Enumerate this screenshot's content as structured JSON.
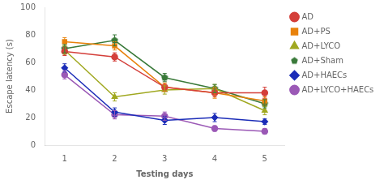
{
  "chart_data": {
    "type": "line",
    "xlabel": "Testing days",
    "ylabel": "Escape latency (s)",
    "x": [
      1,
      2,
      3,
      4,
      5
    ],
    "series": [
      {
        "name": "AD",
        "color": "#d43f3a",
        "marker": "circle",
        "values": [
          68,
          64,
          42,
          38,
          38
        ],
        "errors": [
          3,
          3,
          3,
          3,
          4
        ]
      },
      {
        "name": "AD+PS",
        "color": "#e8820c",
        "marker": "square",
        "values": [
          75,
          72,
          42,
          38,
          32
        ],
        "errors": [
          3,
          3,
          3,
          4,
          3
        ]
      },
      {
        "name": "AD+LYCO",
        "color": "#a0a820",
        "marker": "triangle",
        "values": [
          69,
          35,
          40,
          41,
          25
        ],
        "errors": [
          3,
          3,
          3,
          3,
          3
        ]
      },
      {
        "name": "AD+Sham",
        "color": "#3a7a3a",
        "marker": "pentagon",
        "values": [
          70,
          76,
          49,
          41,
          30
        ],
        "errors": [
          3,
          4,
          3,
          3,
          3
        ]
      },
      {
        "name": "AD+HAECs",
        "color": "#1c2db8",
        "marker": "diamond",
        "values": [
          56,
          24,
          18,
          20,
          17
        ],
        "errors": [
          3,
          3,
          3,
          3,
          2
        ]
      },
      {
        "name": "AD+LYCO+HAECs",
        "color": "#9b59b6",
        "marker": "circle",
        "values": [
          51,
          22,
          21,
          12,
          10
        ],
        "errors": [
          3,
          3,
          3,
          2,
          2
        ]
      }
    ],
    "xlim": [
      0.6,
      5.4
    ],
    "xticks": [
      1,
      2,
      3,
      4,
      5
    ],
    "ylim": [
      0,
      100
    ],
    "yticks": [
      0,
      20,
      40,
      60,
      80,
      100
    ],
    "grid": false,
    "legend": "right"
  }
}
